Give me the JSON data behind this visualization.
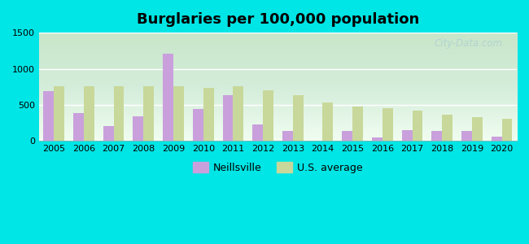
{
  "title": "Burglaries per 100,000 population",
  "years": [
    2005,
    2006,
    2007,
    2008,
    2009,
    2010,
    2011,
    2012,
    2013,
    2014,
    2015,
    2016,
    2017,
    2018,
    2019,
    2020
  ],
  "neillsville": [
    690,
    390,
    210,
    345,
    1210,
    440,
    630,
    230,
    140,
    0,
    140,
    55,
    150,
    145,
    145,
    65
  ],
  "us_average": [
    760,
    760,
    760,
    760,
    760,
    740,
    760,
    700,
    630,
    535,
    480,
    455,
    420,
    370,
    335,
    305
  ],
  "neillsville_color": "#c9a0dc",
  "us_avg_color": "#c8d89a",
  "background_color": "#00e5e5",
  "ylim": [
    0,
    1500
  ],
  "yticks": [
    0,
    500,
    1000,
    1500
  ],
  "bar_width": 0.35,
  "legend_neillsville": "Neillsville",
  "legend_us": "U.S. average",
  "watermark": "City-Data.com",
  "title_fontsize": 13,
  "tick_fontsize": 8,
  "legend_fontsize": 9
}
